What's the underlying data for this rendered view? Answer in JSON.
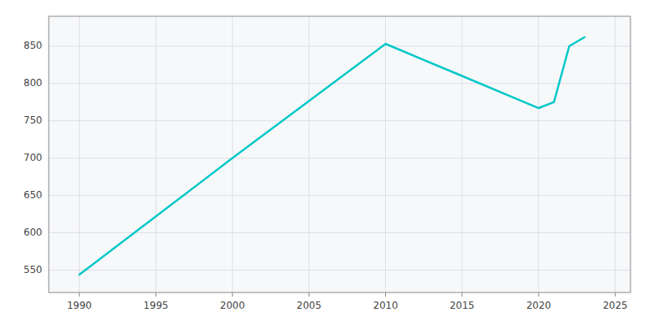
{
  "chart_data": {
    "type": "line",
    "x": [
      1990,
      2000,
      2010,
      2015,
      2020,
      2021,
      2022,
      2023
    ],
    "values": [
      544,
      700,
      853,
      810,
      767,
      775,
      850,
      862
    ],
    "color": "#00C8C8",
    "xlim": [
      1988,
      2026
    ],
    "ylim": [
      520,
      890
    ],
    "xticks": [
      1990,
      1995,
      2000,
      2005,
      2010,
      2015,
      2020,
      2025
    ],
    "yticks": [
      550,
      600,
      650,
      700,
      750,
      800,
      850
    ],
    "grid": true
  }
}
